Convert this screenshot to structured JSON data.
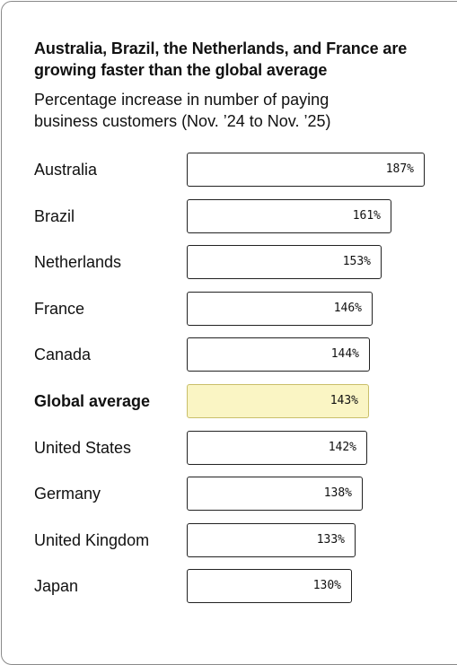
{
  "chart_data": {
    "type": "bar",
    "orientation": "horizontal",
    "title": "Australia, Brazil, the Netherlands, and France are growing faster than the global average",
    "subtitle": "Percentage increase in number of paying business customers (Nov. ’24 to Nov. ’25)",
    "xlabel": "",
    "ylabel": "",
    "grid": false,
    "legend": "none",
    "xlim": [
      0,
      187
    ],
    "categories": [
      "Australia",
      "Brazil",
      "Netherlands",
      "France",
      "Canada",
      "Global average",
      "United States",
      "Germany",
      "United Kingdom",
      "Japan"
    ],
    "values": [
      187,
      161,
      153,
      146,
      144,
      143,
      142,
      138,
      133,
      130
    ],
    "value_labels": [
      "187%",
      "161%",
      "153%",
      "146%",
      "144%",
      "143%",
      "142%",
      "138%",
      "133%",
      "130%"
    ],
    "highlight_category": "Global average",
    "colors": {
      "bar_fill": "#ffffff",
      "bar_border": "#222222",
      "highlight_fill": "#faf5c4",
      "highlight_border": "#c9bf6a",
      "text": "#111111"
    }
  }
}
